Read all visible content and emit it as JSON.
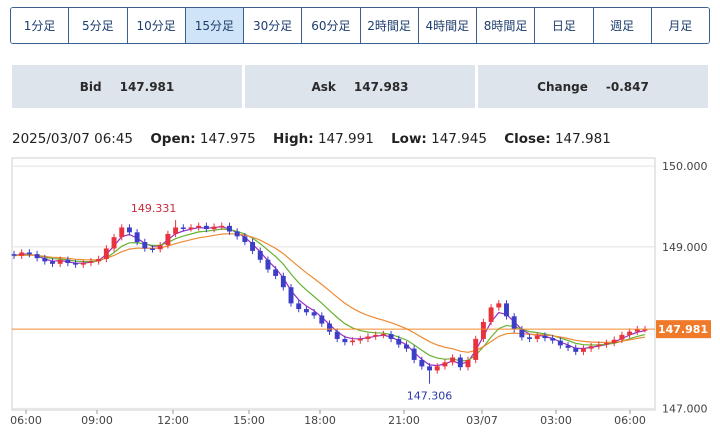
{
  "timeframe_tabs": [
    {
      "label": "1分足",
      "active": false
    },
    {
      "label": "5分足",
      "active": false
    },
    {
      "label": "10分足",
      "active": false
    },
    {
      "label": "15分足",
      "active": true
    },
    {
      "label": "30分足",
      "active": false
    },
    {
      "label": "60分足",
      "active": false
    },
    {
      "label": "2時間足",
      "active": false
    },
    {
      "label": "4時間足",
      "active": false
    },
    {
      "label": "8時間足",
      "active": false
    },
    {
      "label": "日足",
      "active": false
    },
    {
      "label": "週足",
      "active": false
    },
    {
      "label": "月足",
      "active": false
    }
  ],
  "quote": {
    "bid_label": "Bid",
    "bid_value": "147.981",
    "ask_label": "Ask",
    "ask_value": "147.983",
    "change_label": "Change",
    "change_value": "-0.847"
  },
  "ohlc": {
    "datetime": "2025/03/07 06:45",
    "open_label": "Open:",
    "open_value": "147.975",
    "high_label": "High:",
    "high_value": "147.991",
    "low_label": "Low:",
    "low_value": "147.945",
    "close_label": "Close:",
    "close_value": "147.981"
  },
  "chart_data": {
    "type": "candlestick",
    "x_ticks": [
      "06:00",
      "09:00",
      "12:00",
      "15:00",
      "18:00",
      "21:00",
      "03/07",
      "03:00",
      "06:00"
    ],
    "y_ticks": [
      "150.000",
      "149.000",
      "147.000"
    ],
    "y_tick_values": [
      150.0,
      149.0,
      147.0
    ],
    "ylim": [
      146.98,
      150.1
    ],
    "current_price_label": "147.981",
    "current_price": 147.981,
    "high_annotation": "149.331",
    "high_value": 149.331,
    "low_annotation": "147.306",
    "low_value": 147.306,
    "close_values": [
      148.89,
      148.93,
      148.91,
      148.86,
      148.82,
      148.79,
      148.84,
      148.8,
      148.78,
      148.8,
      148.82,
      148.85,
      148.98,
      149.12,
      149.24,
      149.18,
      149.06,
      148.98,
      148.97,
      149.02,
      149.16,
      149.24,
      149.23,
      149.24,
      149.26,
      149.22,
      149.25,
      149.26,
      149.19,
      149.13,
      149.06,
      148.95,
      148.84,
      148.72,
      148.64,
      148.5,
      148.3,
      148.23,
      148.19,
      148.15,
      148.05,
      147.95,
      147.86,
      147.82,
      147.84,
      147.86,
      147.89,
      147.91,
      147.92,
      147.86,
      147.79,
      147.74,
      147.6,
      147.52,
      147.47,
      147.52,
      147.57,
      147.63,
      147.51,
      147.6,
      147.86,
      148.07,
      148.25,
      148.3,
      148.14,
      147.98,
      147.88,
      147.86,
      147.9,
      147.87,
      147.84,
      147.78,
      147.75,
      147.7,
      147.74,
      147.77,
      147.79,
      147.81,
      147.85,
      147.91,
      147.95,
      147.98,
      147.981
    ],
    "series": [
      {
        "name": "",
        "color": "#9a2fc4"
      },
      {
        "name": "",
        "color": "#66b232"
      },
      {
        "name": "",
        "color": "#ee8b33"
      }
    ],
    "colors": {
      "up": "#e8323c",
      "down": "#3c3ec8",
      "price_line": "#f08a2c",
      "price_label_bg": "#ef7a2a"
    }
  }
}
